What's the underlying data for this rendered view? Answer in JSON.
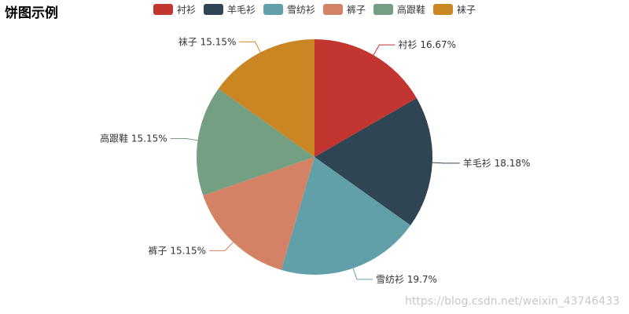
{
  "chart_data": {
    "type": "pie",
    "title": "饼图示例",
    "categories": [
      "衬衫",
      "羊毛衫",
      "雪纺衫",
      "裤子",
      "高跟鞋",
      "袜子"
    ],
    "values": [
      11,
      12,
      13,
      10,
      10,
      10
    ],
    "percent_labels": [
      "16.67%",
      "18.18%",
      "19.7%",
      "15.15%",
      "15.15%",
      "15.15%"
    ],
    "colors": [
      "#c23531",
      "#2f4554",
      "#61a0a8",
      "#d48265",
      "#749f83",
      "#ca8622"
    ],
    "legend_position": "top-center",
    "start_angle": "top, clockwise"
  },
  "watermark": "https://blog.csdn.net/weixin_43746433"
}
